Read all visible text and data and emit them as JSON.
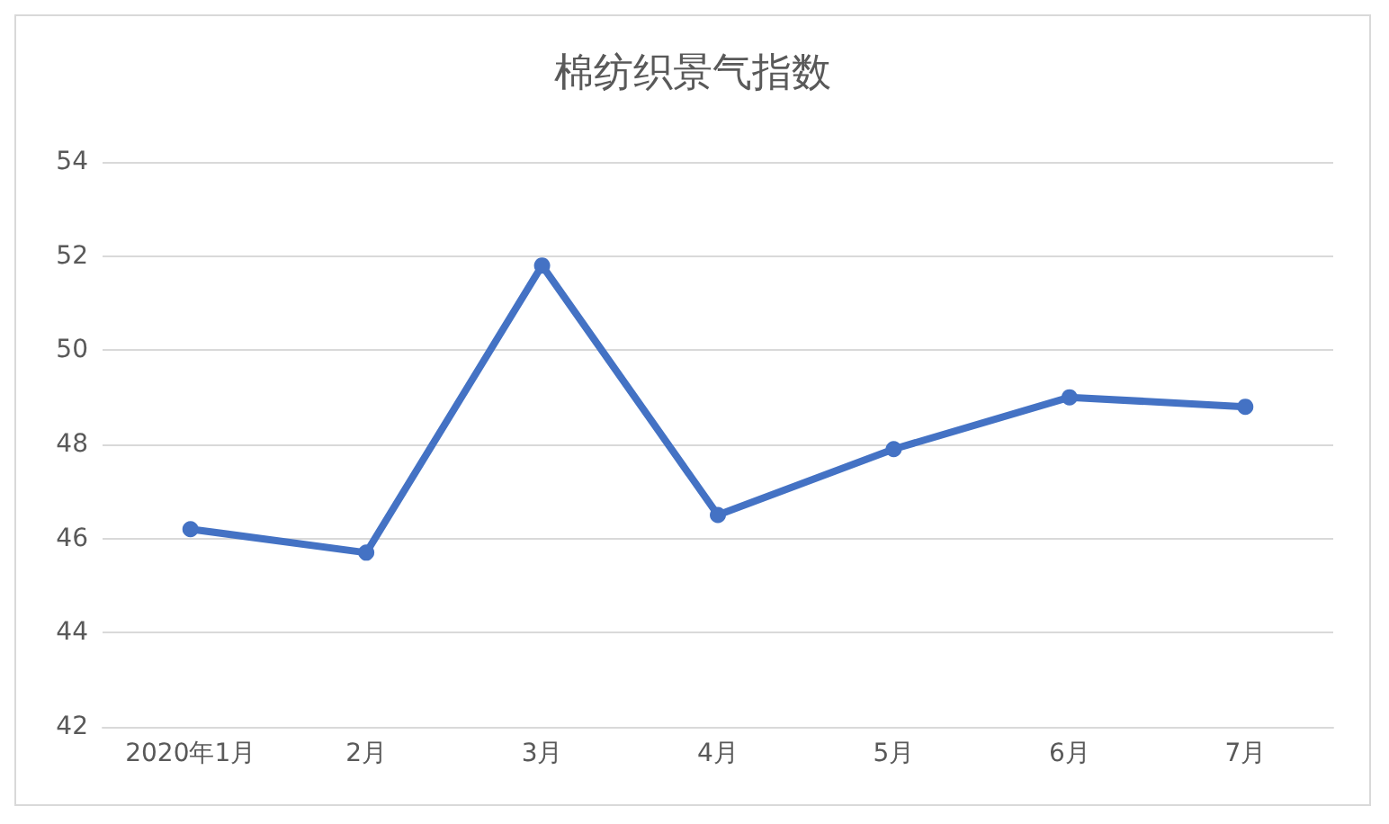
{
  "chart_data": {
    "type": "line",
    "title": "棉纺织景气指数",
    "categories": [
      "2020年1月",
      "2月",
      "3月",
      "4月",
      "5月",
      "6月",
      "7月"
    ],
    "series": [
      {
        "color": "#4472c4",
        "values": [
          46.2,
          45.7,
          51.8,
          46.5,
          47.9,
          49.0,
          48.8
        ]
      }
    ],
    "ylim": [
      42,
      54
    ],
    "yticks": [
      42,
      44,
      46,
      48,
      50,
      52,
      54
    ],
    "grid": "y",
    "marker": "circle",
    "line_style": "solid"
  }
}
